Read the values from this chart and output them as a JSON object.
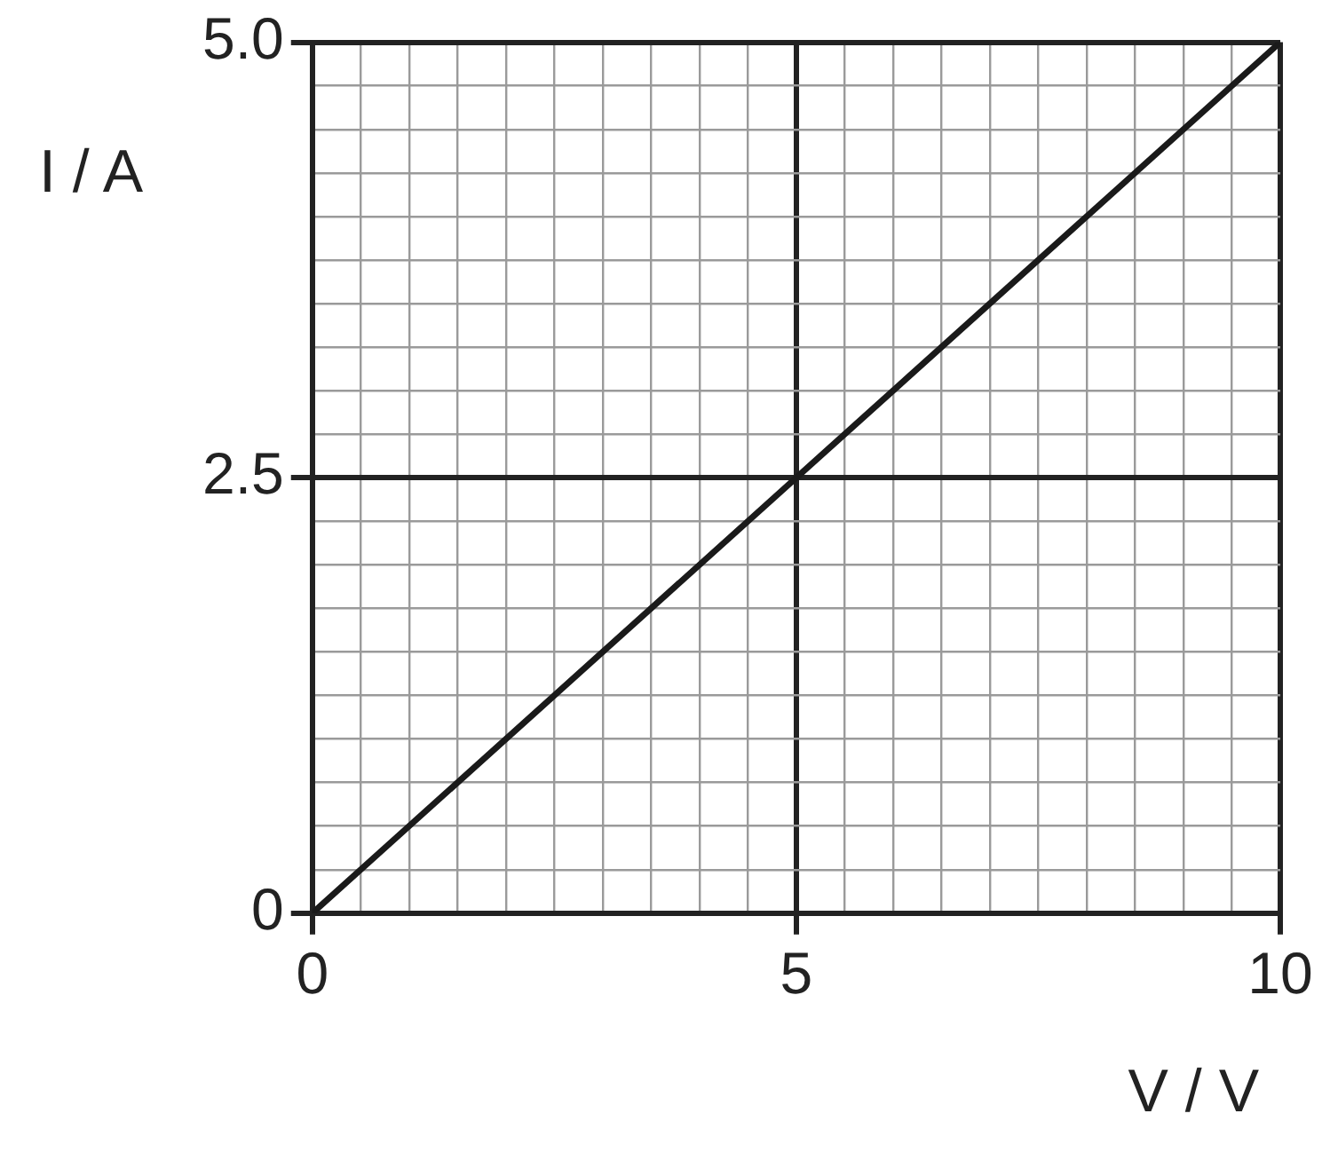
{
  "chart_data": {
    "type": "line",
    "xlabel": "V / V",
    "ylabel": "I / A",
    "x": [
      0,
      10
    ],
    "series": [
      {
        "color": "#1a1a1a",
        "values": [
          0,
          5
        ]
      }
    ],
    "xlim": [
      0,
      10
    ],
    "ylim": [
      0,
      5
    ],
    "xticks": [
      0,
      {
        "value": 0.5,
        "label": null
      },
      {
        "value": 1,
        "label": null
      },
      {
        "value": 1.5,
        "label": null
      },
      {
        "value": 2,
        "label": null
      },
      {
        "value": 2.5,
        "label": null
      },
      {
        "value": 3,
        "label": null
      },
      {
        "value": 3.5,
        "label": null
      },
      {
        "value": 4,
        "label": null
      },
      {
        "value": 4.5,
        "label": null
      },
      5,
      {
        "value": 5.5,
        "label": null
      },
      {
        "value": 6,
        "label": null
      },
      {
        "value": 6.5,
        "label": null
      },
      {
        "value": 7,
        "label": null
      },
      {
        "value": 7.5,
        "label": null
      },
      {
        "value": 8,
        "label": null
      },
      {
        "value": 8.5,
        "label": null
      },
      {
        "value": 9,
        "label": null
      },
      {
        "value": 9.5,
        "label": null
      },
      10
    ],
    "yticks": [
      0,
      {
        "value": 0.25,
        "label": null
      },
      {
        "value": 0.5,
        "label": null
      },
      {
        "value": 0.75,
        "label": null
      },
      {
        "value": 1,
        "label": null
      },
      {
        "value": 1.25,
        "label": null
      },
      {
        "value": 1.5,
        "label": null
      },
      {
        "value": 1.75,
        "label": null
      },
      {
        "value": 2,
        "label": null
      },
      {
        "value": 2.25,
        "label": null
      },
      2.5,
      {
        "value": 2.75,
        "label": null
      },
      {
        "value": 3,
        "label": null
      },
      {
        "value": 3.25,
        "label": null
      },
      {
        "value": 3.5,
        "label": null
      },
      {
        "value": 3.75,
        "label": null
      },
      {
        "value": 4,
        "label": null
      },
      {
        "value": 4.25,
        "label": null
      },
      {
        "value": 4.5,
        "label": null
      },
      {
        "value": 4.75,
        "label": null
      },
      {
        "value": 5,
        "label": "5.0"
      }
    ],
    "grid": true
  }
}
